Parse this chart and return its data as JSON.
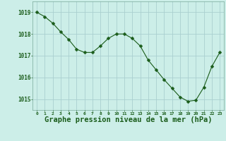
{
  "x": [
    0,
    1,
    2,
    3,
    4,
    5,
    6,
    7,
    8,
    9,
    10,
    11,
    12,
    13,
    14,
    15,
    16,
    17,
    18,
    19,
    20,
    21,
    22,
    23
  ],
  "y": [
    1019.0,
    1018.8,
    1018.5,
    1018.1,
    1017.75,
    1017.3,
    1017.15,
    1017.15,
    1017.45,
    1017.8,
    1018.0,
    1018.0,
    1017.8,
    1017.45,
    1016.8,
    1016.35,
    1015.9,
    1015.5,
    1015.1,
    1014.9,
    1014.95,
    1015.55,
    1016.5,
    1017.15
  ],
  "line_color": "#1a5c1a",
  "marker_color": "#1a5c1a",
  "bg_color": "#cceee8",
  "grid_color": "#aacfcf",
  "xlabel": "Graphe pression niveau de la mer (hPa)",
  "xlabel_fontsize": 7.5,
  "ylabel_ticks": [
    1015,
    1016,
    1017,
    1018,
    1019
  ],
  "xlim": [
    -0.5,
    23.5
  ],
  "ylim": [
    1014.5,
    1019.5
  ],
  "tick_label_color": "#1a5c1a",
  "axis_label_color": "#1a5c1a",
  "xticks": [
    0,
    1,
    2,
    3,
    4,
    5,
    6,
    7,
    8,
    9,
    10,
    11,
    12,
    13,
    14,
    15,
    16,
    17,
    18,
    19,
    20,
    21,
    22,
    23
  ]
}
